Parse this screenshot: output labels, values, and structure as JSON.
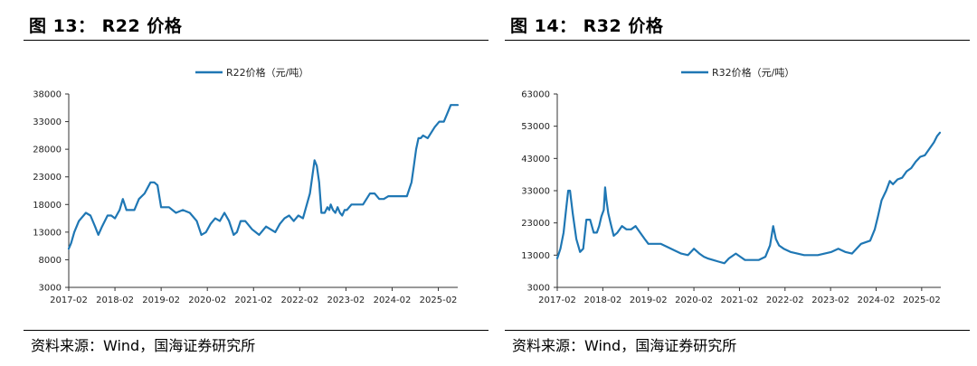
{
  "panels": [
    {
      "title": "图 13： R22 价格",
      "source": "资料来源：Wind，国海证券研究所"
    },
    {
      "title": "图 14： R32 价格",
      "source": "资料来源：Wind，国海证券研究所"
    }
  ],
  "chart_data": [
    {
      "type": "line",
      "title": "",
      "xlabel": "",
      "ylabel": "",
      "legend_position": "top-center",
      "grid": false,
      "line_color": "#1f77b4",
      "ylim": [
        3000,
        38000
      ],
      "yticks": [
        3000,
        8000,
        13000,
        18000,
        23000,
        28000,
        33000,
        38000
      ],
      "xlim": [
        2017.08,
        2025.5
      ],
      "xtick_values": [
        2017.08,
        2018.08,
        2019.08,
        2020.08,
        2021.08,
        2022.08,
        2023.08,
        2024.08,
        2025.08
      ],
      "xtick_labels": [
        "2017-02",
        "2018-02",
        "2019-02",
        "2020-02",
        "2021-02",
        "2022-02",
        "2023-02",
        "2024-02",
        "2025-02"
      ],
      "series": [
        {
          "name": "R22价格（元/吨）",
          "x": [
            2017.08,
            2017.13,
            2017.2,
            2017.3,
            2017.45,
            2017.55,
            2017.65,
            2017.72,
            2017.8,
            2017.92,
            2018.0,
            2018.08,
            2018.18,
            2018.25,
            2018.33,
            2018.4,
            2018.5,
            2018.6,
            2018.72,
            2018.85,
            2018.93,
            2019.0,
            2019.08,
            2019.15,
            2019.25,
            2019.4,
            2019.55,
            2019.7,
            2019.85,
            2019.95,
            2020.05,
            2020.15,
            2020.25,
            2020.35,
            2020.45,
            2020.55,
            2020.65,
            2020.72,
            2020.8,
            2020.9,
            2021.05,
            2021.2,
            2021.35,
            2021.45,
            2021.55,
            2021.65,
            2021.75,
            2021.85,
            2021.95,
            2022.05,
            2022.15,
            2022.3,
            2022.4,
            2022.45,
            2022.5,
            2022.55,
            2022.62,
            2022.68,
            2022.72,
            2022.75,
            2022.8,
            2022.85,
            2022.9,
            2022.95,
            2023.0,
            2023.05,
            2023.1,
            2023.2,
            2023.3,
            2023.45,
            2023.6,
            2023.7,
            2023.8,
            2023.9,
            2024.0,
            2024.1,
            2024.2,
            2024.3,
            2024.4,
            2024.5,
            2024.55,
            2024.6,
            2024.65,
            2024.7,
            2024.75,
            2024.85,
            2025.0,
            2025.1,
            2025.2,
            2025.3,
            2025.35,
            2025.42,
            2025.5
          ],
          "y": [
            10000,
            11000,
            13000,
            15000,
            16500,
            16000,
            14000,
            12500,
            14000,
            16000,
            16000,
            15500,
            17000,
            19000,
            17000,
            17000,
            17000,
            19000,
            20000,
            22000,
            22000,
            21500,
            17500,
            17500,
            17500,
            16500,
            17000,
            16500,
            15000,
            12500,
            13000,
            14500,
            15500,
            15000,
            16500,
            15000,
            12500,
            13000,
            15000,
            15000,
            13500,
            12500,
            14000,
            13500,
            13000,
            14500,
            15500,
            16000,
            15000,
            16000,
            15500,
            20000,
            26000,
            25000,
            22000,
            16500,
            16500,
            17500,
            17000,
            18000,
            17000,
            16500,
            17500,
            16500,
            16000,
            17000,
            17000,
            18000,
            18000,
            18000,
            20000,
            20000,
            19000,
            19000,
            19500,
            19500,
            19500,
            19500,
            19500,
            22000,
            25000,
            28000,
            30000,
            30000,
            30500,
            30000,
            32000,
            33000,
            33000,
            35000,
            36000,
            36000,
            36000
          ]
        }
      ]
    },
    {
      "type": "line",
      "title": "",
      "xlabel": "",
      "ylabel": "",
      "legend_position": "top-center",
      "grid": false,
      "line_color": "#1f77b4",
      "ylim": [
        3000,
        63000
      ],
      "yticks": [
        3000,
        13000,
        23000,
        33000,
        43000,
        53000,
        63000
      ],
      "xlim": [
        2017.08,
        2025.5
      ],
      "xtick_values": [
        2017.08,
        2018.08,
        2019.08,
        2020.08,
        2021.08,
        2022.08,
        2023.08,
        2024.08,
        2025.08
      ],
      "xtick_labels": [
        "2017-02",
        "2018-02",
        "2019-02",
        "2020-02",
        "2021-02",
        "2022-02",
        "2023-02",
        "2024-02",
        "2025-02"
      ],
      "series": [
        {
          "name": "R32价格（元/吨）",
          "x": [
            2017.08,
            2017.15,
            2017.22,
            2017.28,
            2017.32,
            2017.36,
            2017.42,
            2017.5,
            2017.58,
            2017.65,
            2017.72,
            2017.8,
            2017.88,
            2017.95,
            2018.0,
            2018.05,
            2018.1,
            2018.13,
            2018.16,
            2018.2,
            2018.25,
            2018.32,
            2018.4,
            2018.5,
            2018.6,
            2018.7,
            2018.8,
            2018.9,
            2019.0,
            2019.08,
            2019.2,
            2019.35,
            2019.5,
            2019.65,
            2019.8,
            2019.95,
            2020.08,
            2020.2,
            2020.3,
            2020.38,
            2020.5,
            2020.62,
            2020.75,
            2020.85,
            2021.0,
            2021.1,
            2021.2,
            2021.35,
            2021.5,
            2021.65,
            2021.75,
            2021.82,
            2021.88,
            2021.95,
            2022.05,
            2022.2,
            2022.35,
            2022.5,
            2022.65,
            2022.8,
            2022.95,
            2023.1,
            2023.25,
            2023.4,
            2023.55,
            2023.65,
            2023.75,
            2023.85,
            2023.95,
            2024.05,
            2024.12,
            2024.2,
            2024.3,
            2024.38,
            2024.45,
            2024.55,
            2024.65,
            2024.75,
            2024.85,
            2024.95,
            2025.05,
            2025.15,
            2025.25,
            2025.35,
            2025.42,
            2025.48
          ],
          "y": [
            12000,
            15000,
            20000,
            28000,
            33000,
            33000,
            26000,
            18000,
            14000,
            15000,
            24000,
            24000,
            20000,
            20000,
            22000,
            25000,
            27000,
            34000,
            30000,
            26000,
            23000,
            19000,
            20000,
            22000,
            21000,
            21000,
            22000,
            20000,
            18000,
            16500,
            16500,
            16500,
            15500,
            14500,
            13500,
            13000,
            15000,
            13500,
            12500,
            12000,
            11500,
            11000,
            10500,
            12000,
            13500,
            12500,
            11500,
            11500,
            11500,
            12500,
            16000,
            22000,
            18000,
            16000,
            15000,
            14000,
            13500,
            13000,
            13000,
            13000,
            13500,
            14000,
            15000,
            14000,
            13500,
            15000,
            16500,
            17000,
            17500,
            21000,
            25000,
            30000,
            33000,
            36000,
            35000,
            36500,
            37000,
            39000,
            40000,
            42000,
            43500,
            44000,
            46000,
            48000,
            50000,
            51000
          ]
        }
      ]
    }
  ]
}
